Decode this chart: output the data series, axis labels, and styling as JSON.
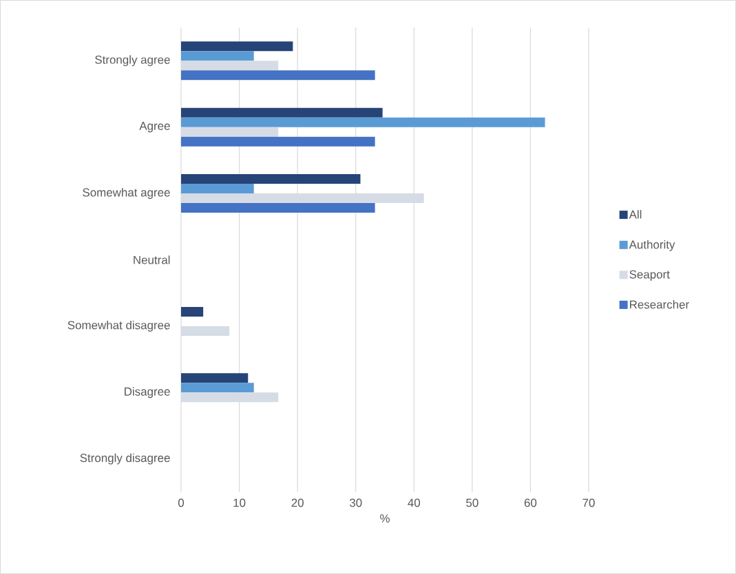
{
  "chart_data": {
    "type": "bar",
    "orientation": "horizontal",
    "xlabel": "%",
    "categories": [
      "Strongly agree",
      "Agree",
      "Somewhat agree",
      "Neutral",
      "Somewhat disagree",
      "Disagree",
      "Strongly disagree"
    ],
    "series": [
      {
        "name": "All",
        "color": "#264478",
        "values": [
          19.2,
          34.6,
          30.8,
          null,
          3.8,
          11.5,
          null
        ]
      },
      {
        "name": "Authority",
        "color": "#5b9bd5",
        "values": [
          12.5,
          62.5,
          12.5,
          null,
          null,
          12.5,
          null
        ]
      },
      {
        "name": "Seaport",
        "color": "#d6dce5",
        "values": [
          16.7,
          16.7,
          41.7,
          null,
          8.3,
          16.7,
          null
        ]
      },
      {
        "name": "Researcher",
        "color": "#4472c4",
        "values": [
          33.3,
          33.3,
          33.3,
          null,
          null,
          null,
          null
        ]
      }
    ],
    "xlim": [
      0,
      70
    ],
    "xticks": [
      0,
      10,
      20,
      30,
      40,
      50,
      60,
      70
    ],
    "grid": "x",
    "legend": "right"
  }
}
